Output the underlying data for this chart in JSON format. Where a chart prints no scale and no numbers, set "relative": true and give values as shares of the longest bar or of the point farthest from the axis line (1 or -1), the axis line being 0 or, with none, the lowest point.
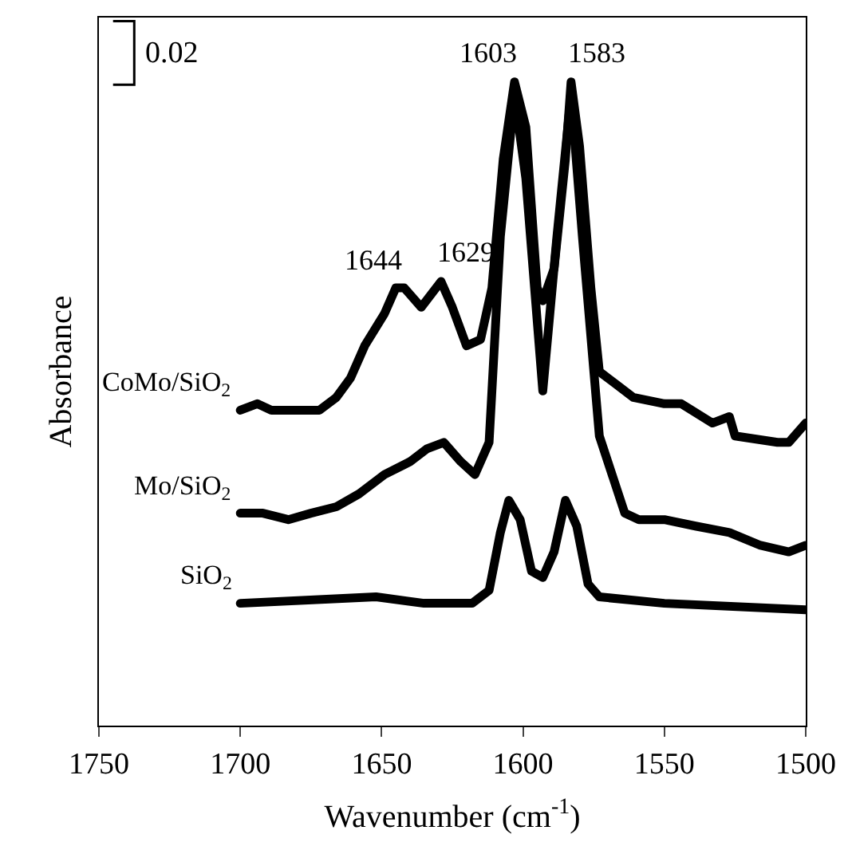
{
  "chart_data": {
    "type": "line",
    "relative": true,
    "xlabel": "Wavenumber (cm$^{-1}$)",
    "ylabel": "Absorbance",
    "xlim": [
      1750,
      1500
    ],
    "xticks": [
      1750,
      1700,
      1650,
      1600,
      1550,
      1500
    ],
    "grid": false,
    "legend": false,
    "marker": "none",
    "line_style": "solid",
    "annotations": [
      "0.02",
      {
        "text": "1644",
        "x": 1644,
        "y": 0.68
      },
      {
        "text": "1629",
        "x": 1629,
        "y": 0.69
      },
      {
        "text": "1603",
        "x": 1603,
        "y": 1.0
      },
      {
        "text": "1583",
        "x": 1583,
        "y": 1.0
      }
    ],
    "series": [
      {
        "name": "CoMo/SiO$_{2}$",
        "color": "#000000",
        "x": [
          1700,
          1694,
          1689,
          1672,
          1666,
          1661,
          1656,
          1649,
          1645,
          1642,
          1636,
          1629,
          1625,
          1620,
          1615,
          1611,
          1607,
          1603,
          1599,
          1595,
          1593,
          1589,
          1585,
          1583,
          1580,
          1576,
          1573,
          1567,
          1561,
          1550,
          1544,
          1533,
          1527,
          1525,
          1510,
          1506,
          1500
        ],
        "values": [
          0.49,
          0.5,
          0.49,
          0.49,
          0.51,
          0.54,
          0.59,
          0.64,
          0.68,
          0.68,
          0.65,
          0.69,
          0.65,
          0.59,
          0.6,
          0.68,
          0.88,
          1.0,
          0.93,
          0.68,
          0.66,
          0.71,
          0.88,
          1.0,
          0.9,
          0.68,
          0.55,
          0.53,
          0.51,
          0.5,
          0.5,
          0.47,
          0.48,
          0.45,
          0.44,
          0.44,
          0.47
        ]
      },
      {
        "name": "Mo/SiO$_{2}$",
        "color": "#000000",
        "x": [
          1700,
          1692,
          1683,
          1675,
          1666,
          1658,
          1649,
          1640,
          1634,
          1628,
          1622,
          1617,
          1612,
          1608,
          1603,
          1599,
          1593,
          1588,
          1583,
          1579,
          1573,
          1564,
          1559,
          1550,
          1539,
          1527,
          1516,
          1506,
          1500
        ],
        "values": [
          0.33,
          0.33,
          0.32,
          0.33,
          0.34,
          0.36,
          0.39,
          0.41,
          0.43,
          0.44,
          0.41,
          0.39,
          0.44,
          0.76,
          0.98,
          0.85,
          0.52,
          0.76,
          0.98,
          0.76,
          0.45,
          0.33,
          0.32,
          0.32,
          0.31,
          0.3,
          0.28,
          0.27,
          0.28
        ]
      },
      {
        "name": "SiO$_{2}$",
        "color": "#000000",
        "x": [
          1700,
          1652,
          1635,
          1618,
          1612,
          1608,
          1605,
          1601,
          1597,
          1593,
          1589,
          1585,
          1581,
          1577,
          1573,
          1550,
          1500
        ],
        "values": [
          0.19,
          0.2,
          0.19,
          0.19,
          0.21,
          0.3,
          0.35,
          0.32,
          0.24,
          0.23,
          0.27,
          0.35,
          0.31,
          0.22,
          0.2,
          0.19,
          0.18
        ]
      }
    ]
  }
}
